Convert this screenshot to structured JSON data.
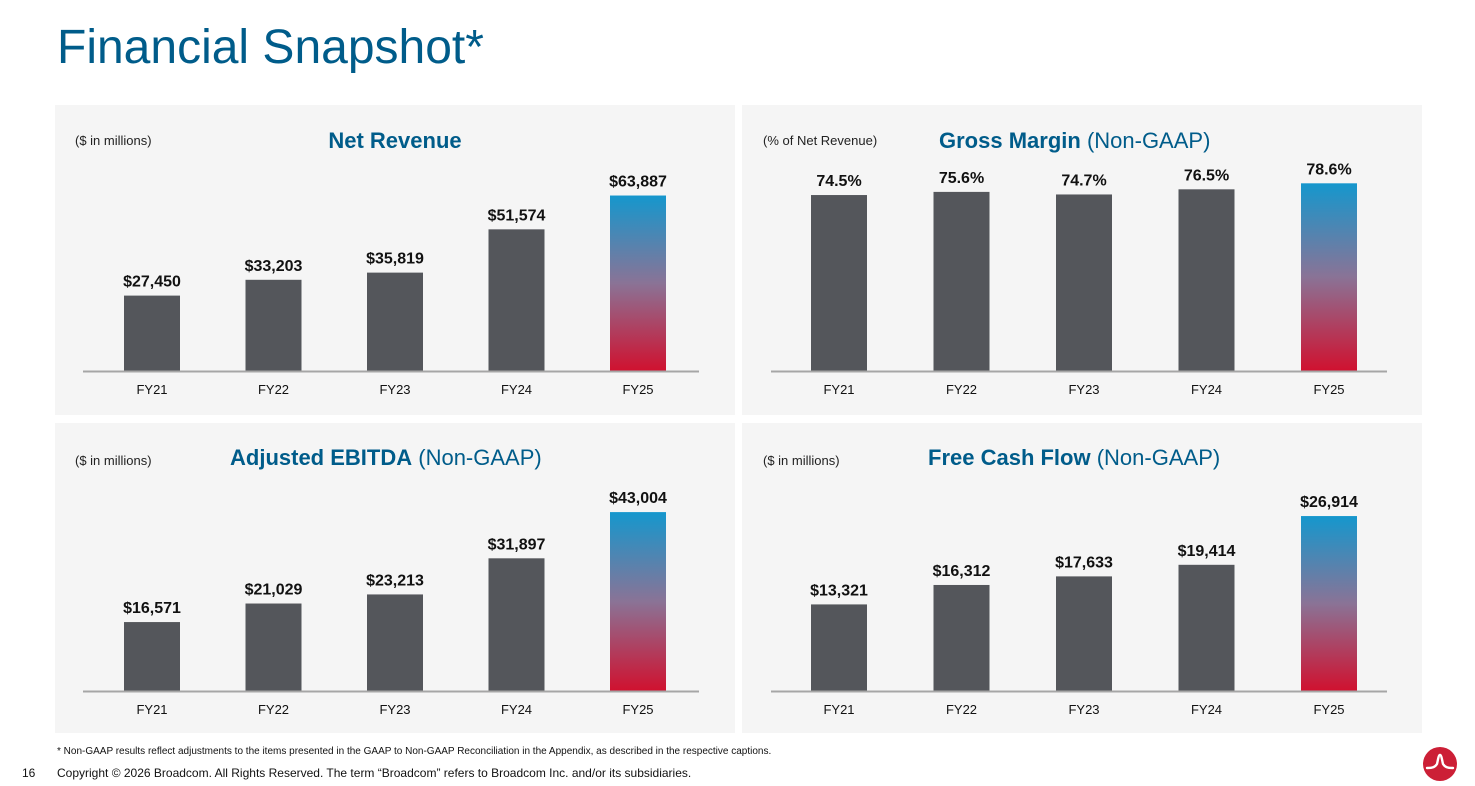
{
  "page": {
    "title": "Financial Snapshot*",
    "page_number": "16",
    "footnote": "* Non-GAAP results reflect adjustments to the items presented in the GAAP to Non-GAAP Reconciliation in the Appendix, as described in the respective captions.",
    "copyright": "Copyright © 2026 Broadcom. All Rights Reserved. The term “Broadcom” refers to Broadcom Inc. and/or its subsidiaries.",
    "logo_icon": "broadcom-logo"
  },
  "colors": {
    "title": "#005c8a",
    "bar": "#54565b",
    "highlight_gradient_top": "#1597cd",
    "highlight_gradient_mid": "#8a7396",
    "highlight_gradient_bottom": "#d0112f",
    "panel_bg": "#f5f5f5",
    "axis": "#a6a6a6",
    "logo": "#cc1f36"
  },
  "chart_data": [
    {
      "id": "net-revenue",
      "type": "bar",
      "title": "Net Revenue",
      "title_suffix": "",
      "unit_note": "($ in millions)",
      "xlabel": "",
      "ylabel": "",
      "categories": [
        "FY21",
        "FY22",
        "FY23",
        "FY24",
        "FY25"
      ],
      "values": [
        27450,
        33203,
        35819,
        51574,
        63887
      ],
      "labels": [
        "$27,450",
        "$33,203",
        "$35,819",
        "$51,574",
        "$63,887"
      ],
      "highlight_index": 4,
      "ylim": [
        0,
        75000
      ],
      "grid": false,
      "legend": "none"
    },
    {
      "id": "gross-margin",
      "type": "bar",
      "title": "Gross Margin",
      "title_suffix": "(Non-GAAP)",
      "unit_note": "(% of Net Revenue)",
      "xlabel": "",
      "ylabel": "",
      "categories": [
        "FY21",
        "FY22",
        "FY23",
        "FY24",
        "FY25"
      ],
      "values": [
        74.5,
        75.6,
        74.7,
        76.5,
        78.6
      ],
      "labels": [
        "74.5%",
        "75.6%",
        "74.7%",
        "76.5%",
        "78.6%"
      ],
      "highlight_index": 4,
      "ylim": [
        13,
        85
      ],
      "grid": false,
      "legend": "none"
    },
    {
      "id": "adjusted-ebitda",
      "type": "bar",
      "title": "Adjusted EBITDA",
      "title_suffix": "(Non-GAAP)",
      "unit_note": "($ in millions)",
      "xlabel": "",
      "ylabel": "",
      "categories": [
        "FY21",
        "FY22",
        "FY23",
        "FY24",
        "FY25"
      ],
      "values": [
        16571,
        21029,
        23213,
        31897,
        43004
      ],
      "labels": [
        "$16,571",
        "$21,029",
        "$23,213",
        "$31,897",
        "$43,004"
      ],
      "highlight_index": 4,
      "ylim": [
        0,
        50000
      ],
      "grid": false,
      "legend": "none"
    },
    {
      "id": "free-cash-flow",
      "type": "bar",
      "title": "Free Cash Flow",
      "title_suffix": "(Non-GAAP)",
      "unit_note": "($ in millions)",
      "xlabel": "",
      "ylabel": "",
      "categories": [
        "FY21",
        "FY22",
        "FY23",
        "FY24",
        "FY25"
      ],
      "values": [
        13321,
        16312,
        17633,
        19414,
        26914
      ],
      "labels": [
        "$13,321",
        "$16,312",
        "$17,633",
        "$19,414",
        "$26,914"
      ],
      "highlight_index": 4,
      "ylim": [
        0,
        32000
      ],
      "grid": false,
      "legend": "none"
    }
  ]
}
